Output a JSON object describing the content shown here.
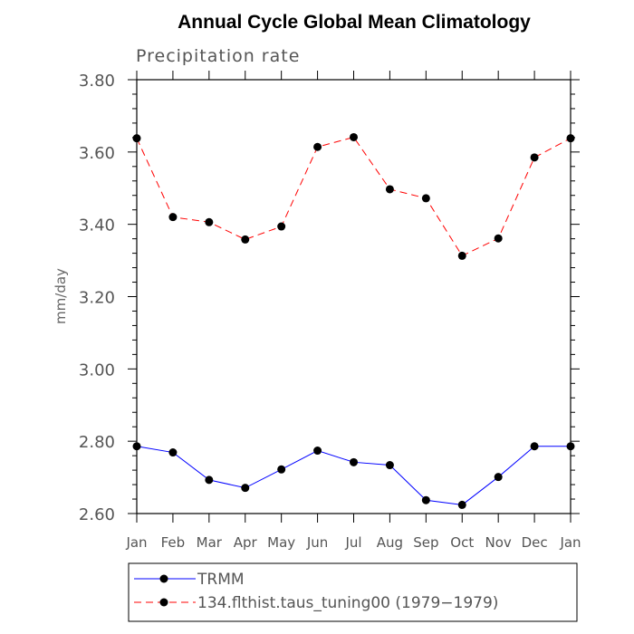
{
  "chart_data": {
    "type": "line",
    "title": "Annual Cycle Global Mean Climatology",
    "subtitle": "Precipitation rate",
    "xlabel": "",
    "ylabel": "mm/day",
    "categories": [
      "Jan",
      "Feb",
      "Mar",
      "Apr",
      "May",
      "Jun",
      "Jul",
      "Aug",
      "Sep",
      "Oct",
      "Nov",
      "Dec",
      "Jan"
    ],
    "ylim": [
      2.6,
      3.8
    ],
    "yticks": [
      "2.60",
      "2.80",
      "3.00",
      "3.20",
      "3.40",
      "3.60",
      "3.80"
    ],
    "grid": false,
    "legend_position": "bottom",
    "series": [
      {
        "name": "TRMM",
        "color": "#0000ff",
        "dash": "solid",
        "marker": "filled-circle",
        "values": [
          2.786,
          2.769,
          2.693,
          2.671,
          2.722,
          2.774,
          2.742,
          2.734,
          2.637,
          2.624,
          2.701,
          2.786,
          2.786
        ]
      },
      {
        "name": "134.flthist.taus_tuning00 (1979−1979)",
        "color": "#ff0000",
        "dash": "dashed",
        "marker": "filled-circle",
        "values": [
          3.638,
          3.42,
          3.406,
          3.358,
          3.394,
          3.614,
          3.641,
          3.497,
          3.472,
          3.313,
          3.361,
          3.585,
          3.638
        ]
      }
    ]
  }
}
